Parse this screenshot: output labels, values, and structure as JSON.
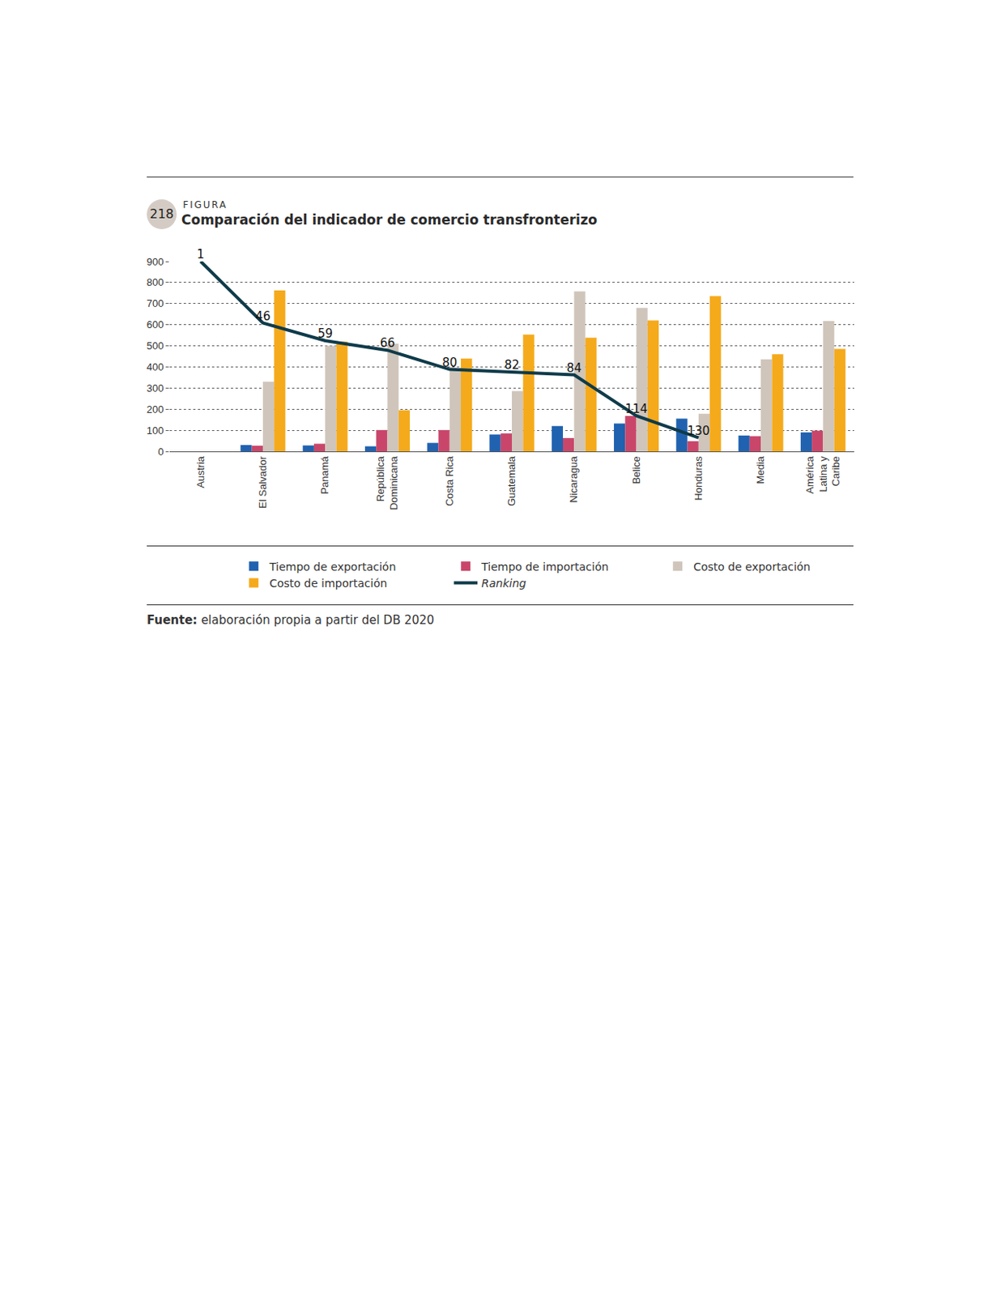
{
  "chart_data": {
    "type": "bar",
    "figure": {
      "label": "FIGURA",
      "number": "218"
    },
    "title": "Comparación del indicador de comercio transfronterizo",
    "source": {
      "label": "Fuente:",
      "text": "elaboración propia a partir del DB 2020"
    },
    "categories": [
      "Austria",
      "El Salvador",
      "Panamá",
      "República Dominicana",
      "Costa Rica",
      "Guatemala",
      "Nicaragua",
      "Belice",
      "Honduras",
      "Media",
      "América Latina y Caribe"
    ],
    "series": [
      {
        "name": "Tiempo de exportación",
        "type": "bar",
        "color": "#2062b0",
        "values": [
          0,
          30,
          28,
          24,
          40,
          80,
          120,
          132,
          155,
          75,
          90
        ]
      },
      {
        "name": "Tiempo de importación",
        "type": "bar",
        "color": "#c9466a",
        "values": [
          0,
          27,
          36,
          101,
          101,
          85,
          63,
          168,
          48,
          72,
          98
        ]
      },
      {
        "name": "Costo de exportación",
        "type": "bar",
        "color": "#cfc5bb",
        "values": [
          0,
          330,
          500,
          510,
          395,
          285,
          758,
          680,
          178,
          436,
          617
        ]
      },
      {
        "name": "Costo de importación",
        "type": "bar",
        "color": "#f5aa1c",
        "values": [
          0,
          762,
          520,
          195,
          440,
          553,
          538,
          620,
          735,
          460,
          485
        ]
      },
      {
        "name": "Ranking",
        "type": "line",
        "axis": "y2",
        "color": "#0f3b4a",
        "data_labels": true,
        "values": [
          1,
          46,
          59,
          66,
          80,
          82,
          84,
          114,
          130,
          null,
          null
        ]
      }
    ],
    "ylim": [
      0,
      900
    ],
    "yticks": [
      0,
      100,
      200,
      300,
      400,
      500,
      600,
      700,
      800,
      900
    ],
    "y2lim": [
      140,
      1
    ],
    "grid": true,
    "legend": "bottom"
  }
}
